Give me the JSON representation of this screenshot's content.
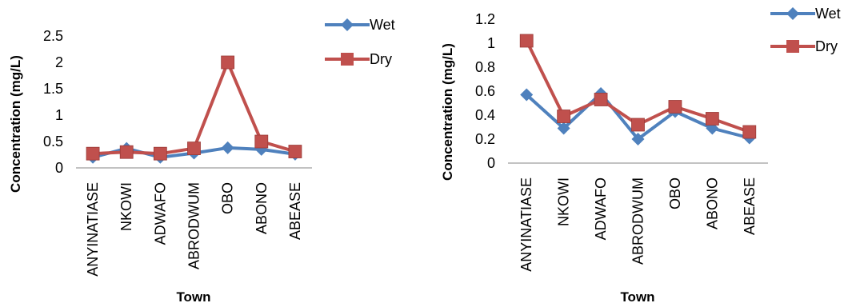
{
  "chart_data": [
    {
      "type": "line",
      "categories": [
        "ANYINATIASE",
        "NKOWI",
        "ADWAFO",
        "ABRODWUM",
        "OBO",
        "ABONO",
        "ABEASE"
      ],
      "series": [
        {
          "name": "Wet",
          "values": [
            0.2,
            0.37,
            0.2,
            0.28,
            0.38,
            0.35,
            0.26
          ],
          "color": "#4F81BD",
          "marker": "diamond"
        },
        {
          "name": "Dry",
          "values": [
            0.27,
            0.3,
            0.27,
            0.37,
            2.0,
            0.5,
            0.31
          ],
          "color": "#C0504D",
          "marker": "square"
        }
      ],
      "xlabel": "Town",
      "ylabel": "Concentration (mg/L)",
      "ylim": [
        0,
        2.5
      ],
      "yticks": [
        "0",
        "0.5",
        "1",
        "1.5",
        "2",
        "2.5"
      ],
      "ytick_values": [
        0,
        0.5,
        1,
        1.5,
        2,
        2.5
      ],
      "grid": false,
      "legend": "right"
    },
    {
      "type": "line",
      "categories": [
        "ANYINATIASE",
        "NKOWI",
        "ADWAFO",
        "ABRODWUM",
        "OBO",
        "ABONO",
        "ABEASE"
      ],
      "series": [
        {
          "name": "Wet",
          "values": [
            0.57,
            0.29,
            0.58,
            0.2,
            0.43,
            0.29,
            0.21
          ],
          "color": "#4F81BD",
          "marker": "diamond"
        },
        {
          "name": "Dry",
          "values": [
            1.02,
            0.39,
            0.53,
            0.32,
            0.47,
            0.37,
            0.26
          ],
          "color": "#C0504D",
          "marker": "square"
        }
      ],
      "xlabel": "Town",
      "ylabel": "Concentration (mg/L)",
      "ylim": [
        0,
        1.2
      ],
      "yticks": [
        "0",
        "0.2",
        "0.4",
        "0.6",
        "0.8",
        "1",
        "1.2"
      ],
      "ytick_values": [
        0,
        0.2,
        0.4,
        0.6,
        0.8,
        1.0,
        1.2
      ],
      "grid": false,
      "legend": "top-right"
    }
  ]
}
